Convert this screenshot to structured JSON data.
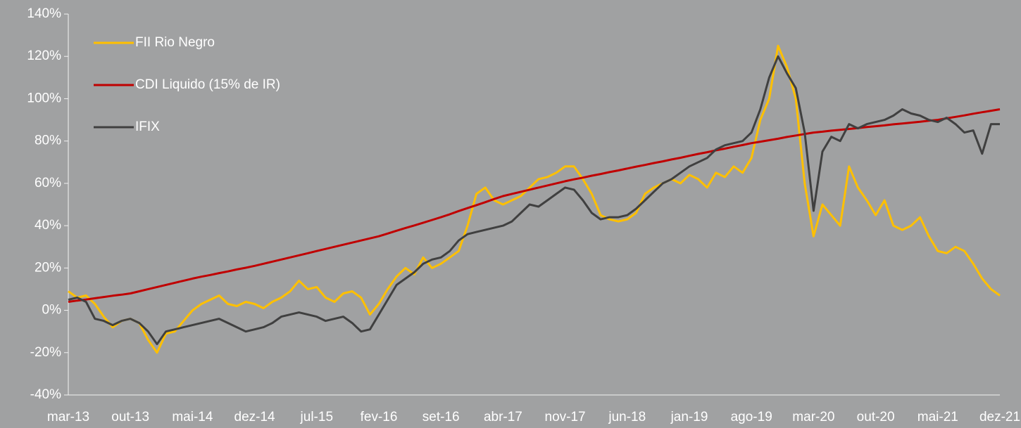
{
  "chart_data": {
    "type": "line",
    "categories": [
      "mar-13",
      null,
      null,
      null,
      null,
      null,
      null,
      "out-13",
      null,
      null,
      null,
      null,
      null,
      null,
      "mai-14",
      null,
      null,
      null,
      null,
      null,
      null,
      "dez-14",
      null,
      null,
      null,
      null,
      null,
      null,
      "jul-15",
      null,
      null,
      null,
      null,
      null,
      null,
      "fev-16",
      null,
      null,
      null,
      null,
      null,
      null,
      "set-16",
      null,
      null,
      null,
      null,
      null,
      null,
      "abr-17",
      null,
      null,
      null,
      null,
      null,
      null,
      "nov-17",
      null,
      null,
      null,
      null,
      null,
      null,
      "jun-18",
      null,
      null,
      null,
      null,
      null,
      null,
      "jan-19",
      null,
      null,
      null,
      null,
      null,
      null,
      "ago-19",
      null,
      null,
      null,
      null,
      null,
      null,
      "mar-20",
      null,
      null,
      null,
      null,
      null,
      null,
      "out-20",
      null,
      null,
      null,
      null,
      null,
      null,
      "mai-21",
      null,
      null,
      null,
      null,
      null,
      null,
      "dez-21"
    ],
    "series": [
      {
        "name": "FII Rio Negro",
        "color": "#ffc000",
        "values": [
          9,
          6,
          7,
          3,
          -3,
          -8,
          -5,
          -4,
          -6,
          -14,
          -20,
          -11,
          -10,
          -5,
          0,
          3,
          5,
          7,
          3,
          2,
          4,
          3,
          1,
          4,
          6,
          9,
          14,
          10,
          11,
          6,
          4,
          8,
          9,
          6,
          -2,
          3,
          10,
          16,
          20,
          17,
          25,
          20,
          22,
          25,
          28,
          40,
          55,
          58,
          52,
          50,
          52,
          54,
          58,
          62,
          63,
          65,
          68,
          68,
          62,
          55,
          45,
          43,
          42,
          43,
          46,
          55,
          58,
          60,
          62,
          60,
          64,
          62,
          58,
          65,
          63,
          68,
          65,
          72,
          90,
          100,
          125,
          115,
          100,
          60,
          35,
          50,
          45,
          40,
          68,
          58,
          52,
          45,
          52,
          40,
          38,
          40,
          44,
          35,
          28,
          27,
          30,
          28,
          22,
          15,
          10,
          7
        ]
      },
      {
        "name": "CDI Liquido (15% de IR)",
        "color": "#c00000",
        "values": [
          4,
          4.6,
          5.1,
          5.7,
          6.3,
          6.9,
          7.4,
          8,
          9,
          10,
          11,
          12,
          13,
          14,
          15,
          15.9,
          16.7,
          17.6,
          18.4,
          19.3,
          20.1,
          21,
          22,
          23,
          24,
          25,
          26,
          27,
          28,
          29,
          30,
          31,
          32,
          33,
          34,
          35,
          36.3,
          37.6,
          38.9,
          40.1,
          41.4,
          42.7,
          44,
          45.4,
          46.9,
          48.3,
          49.7,
          51.1,
          52.6,
          54,
          55,
          56,
          57,
          58,
          59,
          60,
          61,
          61.9,
          62.7,
          63.6,
          64.4,
          65.3,
          66.1,
          67,
          67.9,
          68.7,
          69.6,
          70.4,
          71.3,
          72.1,
          73,
          73.9,
          74.7,
          75.6,
          76.4,
          77.3,
          78.1,
          79,
          79.7,
          80.4,
          81.1,
          81.9,
          82.6,
          83.3,
          84,
          84.4,
          84.9,
          85.3,
          85.7,
          86.1,
          86.6,
          87,
          87.4,
          87.9,
          88.3,
          88.7,
          89.1,
          89.6,
          90,
          90.7,
          91.4,
          92.1,
          92.9,
          93.6,
          94.3,
          95
        ]
      },
      {
        "name": "IFIX",
        "color": "#404040",
        "values": [
          5,
          6,
          4,
          -4,
          -5,
          -7,
          -5,
          -4,
          -6,
          -10,
          -16,
          -10,
          -9,
          -8,
          -7,
          -6,
          -5,
          -4,
          -6,
          -8,
          -10,
          -9,
          -8,
          -6,
          -3,
          -2,
          -1,
          -2,
          -3,
          -5,
          -4,
          -3,
          -6,
          -10,
          -9,
          -2,
          5,
          12,
          15,
          18,
          22,
          24,
          25,
          28,
          33,
          36,
          37,
          38,
          39,
          40,
          42,
          46,
          50,
          49,
          52,
          55,
          58,
          57,
          52,
          46,
          43,
          44,
          44,
          45,
          48,
          52,
          56,
          60,
          62,
          65,
          68,
          70,
          72,
          76,
          78,
          79,
          80,
          84,
          95,
          110,
          120,
          112,
          105,
          84,
          47,
          75,
          82,
          80,
          88,
          86,
          88,
          89,
          90,
          92,
          95,
          93,
          92,
          90,
          89,
          91,
          88,
          84,
          85,
          74,
          88,
          88
        ]
      }
    ],
    "ylim": [
      -40,
      140
    ],
    "yticks": [
      {
        "value": -40,
        "label": "-40%"
      },
      {
        "value": -20,
        "label": "-20%"
      },
      {
        "value": 0,
        "label": "0%"
      },
      {
        "value": 20,
        "label": "20%"
      },
      {
        "value": 40,
        "label": "40%"
      },
      {
        "value": 60,
        "label": "60%"
      },
      {
        "value": 80,
        "label": "80%"
      },
      {
        "value": 100,
        "label": "100%"
      },
      {
        "value": 120,
        "label": "120%"
      },
      {
        "value": 140,
        "label": "140%"
      }
    ],
    "legend": "upper left"
  }
}
